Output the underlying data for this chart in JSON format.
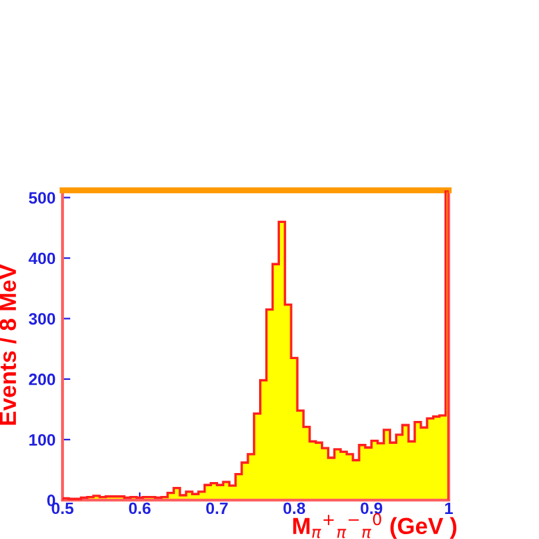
{
  "chart_data": {
    "type": "histogram",
    "xlabel": "M$_{π}$$^{+}$$_{π}$$^{−}$$_{π}$$^{0}$ (GeV )",
    "ylabel": "Events / 8 MeV",
    "bins": [
      0.5,
      0.508,
      0.516,
      0.524,
      0.532,
      0.54,
      0.548,
      0.556,
      0.564,
      0.572,
      0.58,
      0.588,
      0.596,
      0.604,
      0.612,
      0.62,
      0.628,
      0.636,
      0.644,
      0.652,
      0.66,
      0.668,
      0.676,
      0.684,
      0.692,
      0.7,
      0.708,
      0.716,
      0.724,
      0.732,
      0.74,
      0.748,
      0.756,
      0.764,
      0.772,
      0.78,
      0.788,
      0.796,
      0.804,
      0.812,
      0.82,
      0.828,
      0.836,
      0.844,
      0.852,
      0.86,
      0.868,
      0.876,
      0.884,
      0.892,
      0.9,
      0.908,
      0.916,
      0.924,
      0.932,
      0.94,
      0.948,
      0.956,
      0.964,
      0.972,
      0.98,
      0.988,
      0.996,
      1.0
    ],
    "values": [
      3,
      2,
      2,
      4,
      5,
      7,
      5,
      6,
      6,
      6,
      4,
      5,
      4,
      5,
      5,
      4,
      5,
      12,
      20,
      8,
      14,
      10,
      14,
      25,
      28,
      25,
      30,
      24,
      43,
      62,
      76,
      143,
      198,
      315,
      390,
      460,
      323,
      235,
      148,
      121,
      97,
      95,
      86,
      70,
      84,
      80,
      76,
      66,
      91,
      87,
      98,
      94,
      116,
      95,
      108,
      124,
      97,
      129,
      120,
      135,
      138,
      140,
      512
    ],
    "color": "#ffff00",
    "xlim": [
      0.5,
      1.0
    ],
    "ylim": [
      0,
      512
    ],
    "xticks": [
      0.5,
      0.6,
      0.7,
      0.8,
      0.9,
      1
    ],
    "yticks": [
      0,
      100,
      200,
      300,
      400,
      500
    ],
    "grid": false
  }
}
